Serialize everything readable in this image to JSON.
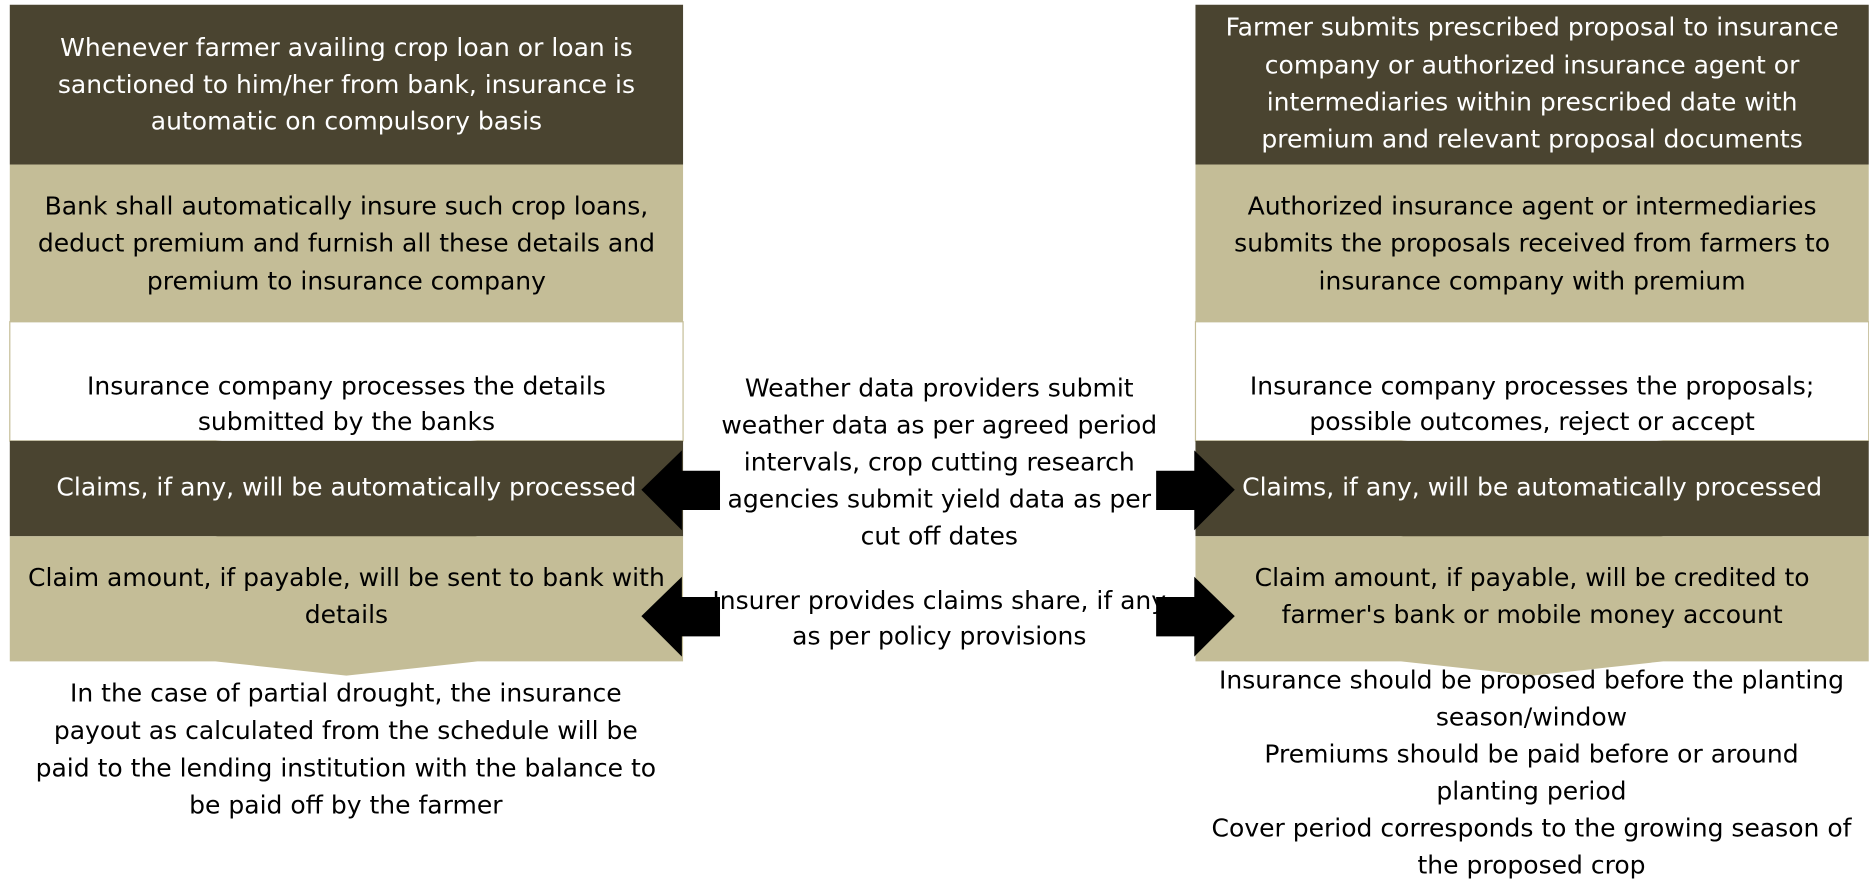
{
  "left": {
    "steps": [
      [
        "Whenever farmer availing crop loan or loan is",
        "sanctioned to him/her from bank, insurance is",
        "automatic on compulsory basis"
      ],
      [
        "Bank shall automatically insure such crop loans,",
        "deduct premium and furnish all these details and",
        "premium to insurance company"
      ],
      [
        "Insurance company processes the details",
        "submitted by the banks"
      ],
      [
        "Claims, if any, will be automatically processed"
      ],
      [
        "Claim amount, if payable, will be sent to bank with",
        "details"
      ]
    ],
    "note": [
      "In the case of partial drought, the insurance",
      "payout as calculated from the schedule will be",
      "paid to the lending institution with the balance to",
      "be paid off by the farmer"
    ]
  },
  "middle": {
    "weather": [
      "Weather data providers submit",
      "weather data as per agreed period",
      "intervals, crop cutting research",
      "agencies submit yield data as per",
      "cut off dates"
    ],
    "claims": [
      "Insurer provides claims share, if any",
      "as per policy provisions"
    ]
  },
  "right": {
    "steps": [
      [
        "Farmer submits prescribed proposal to insurance",
        "company or authorized insurance agent or",
        "intermediaries within prescribed date with",
        "premium and relevant proposal documents"
      ],
      [
        "Authorized insurance agent or intermediaries",
        "submits the proposals received from farmers to",
        "insurance company with premium"
      ],
      [
        "Insurance company processes the proposals;",
        "possible outcomes, reject or accept"
      ],
      [
        "Claims, if any, will be automatically processed"
      ],
      [
        "Claim amount, if payable, will be credited to",
        "farmer's bank or mobile money account"
      ]
    ],
    "note": [
      "Insurance should be proposed before the planting",
      "season/window",
      "Premiums should be paid before or around",
      "planting period",
      "Cover period corresponds to the growing season of",
      "the proposed crop"
    ]
  }
}
